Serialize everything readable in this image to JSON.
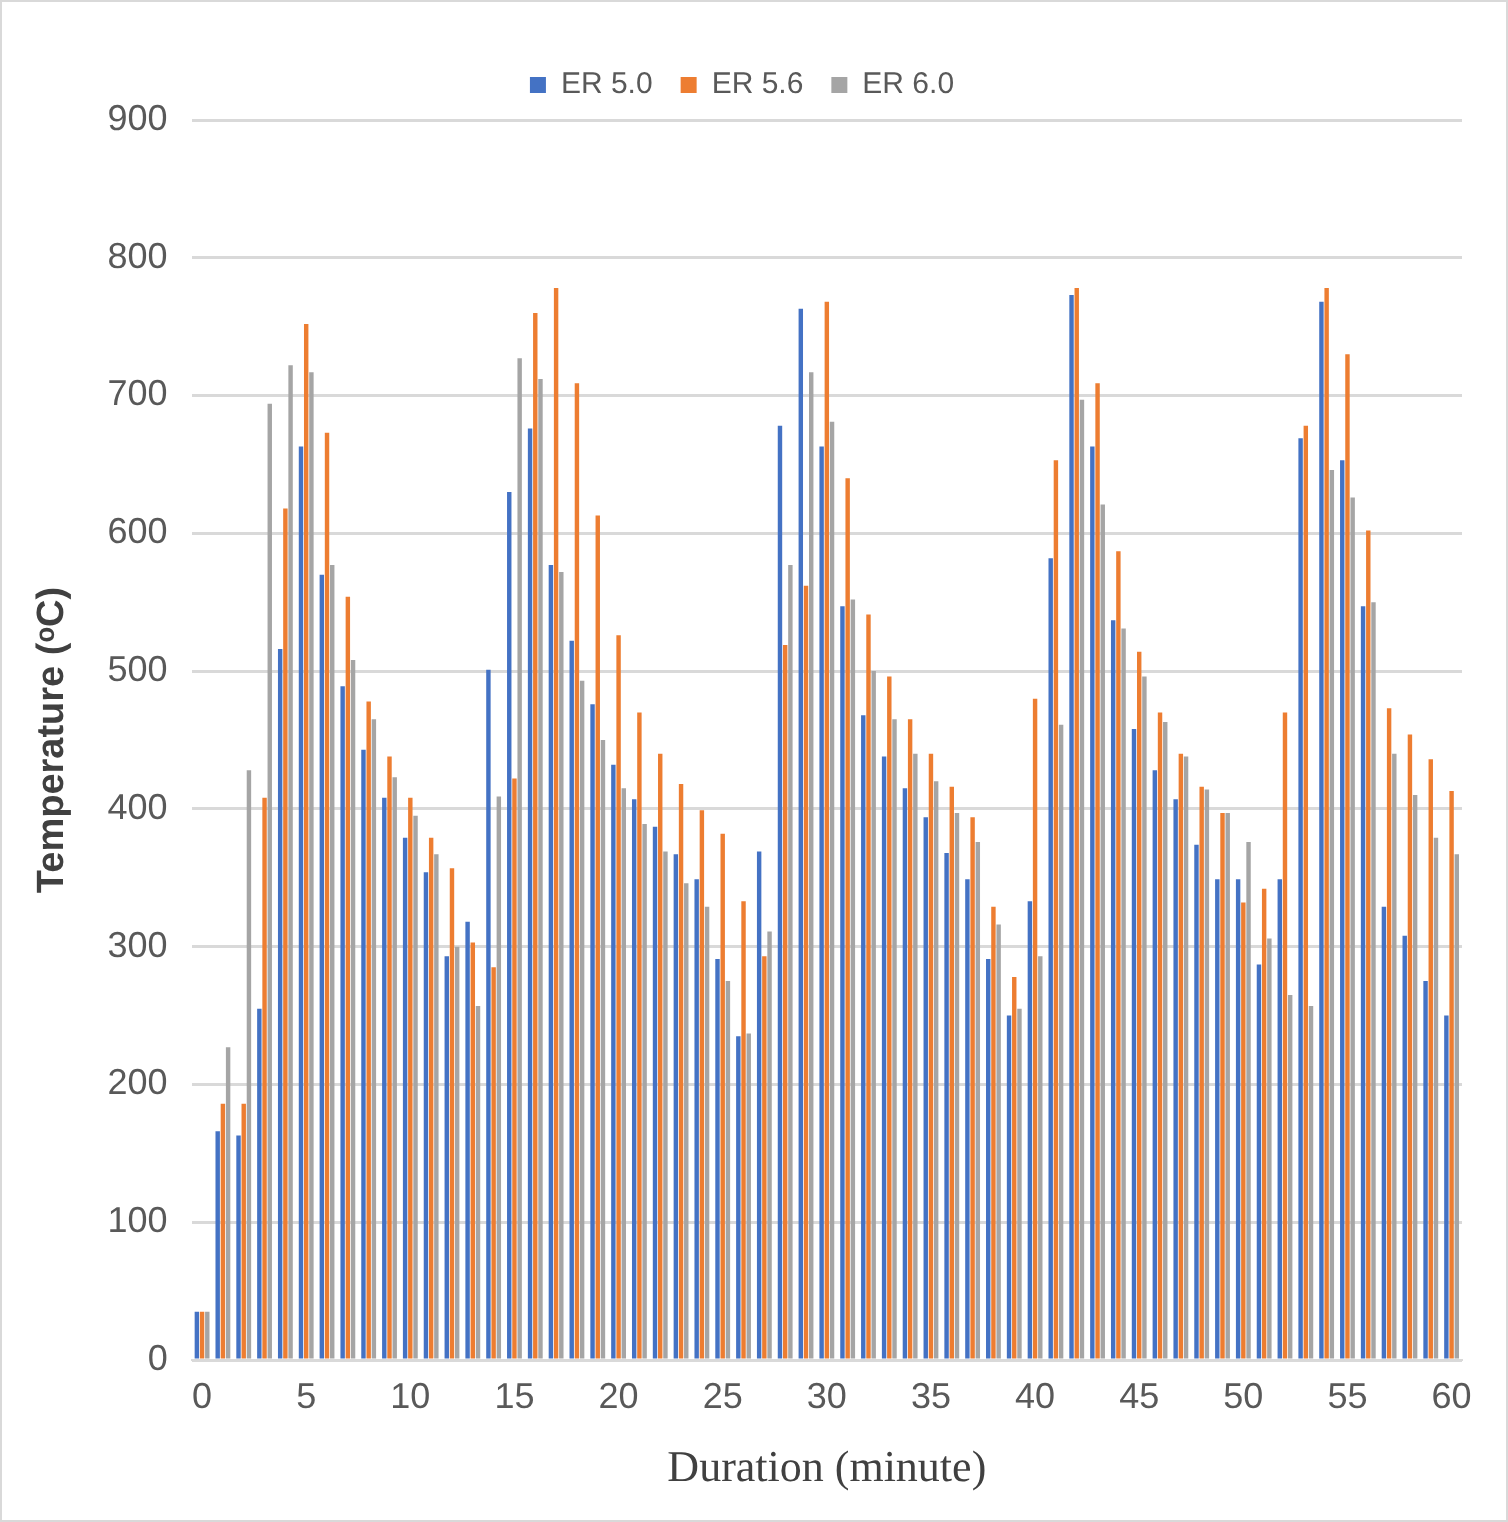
{
  "chart_data": {
    "type": "bar",
    "xlabel": "Duration (minute)",
    "ylabel": "Temperature (ᵒC)",
    "categories": [
      "0",
      null,
      null,
      null,
      null,
      "5",
      null,
      null,
      null,
      null,
      "10",
      null,
      null,
      null,
      null,
      "15",
      null,
      null,
      null,
      null,
      "20",
      null,
      null,
      null,
      null,
      "25",
      null,
      null,
      null,
      null,
      "30",
      null,
      null,
      null,
      null,
      "35",
      null,
      null,
      null,
      null,
      "40",
      null,
      null,
      null,
      null,
      "45",
      null,
      null,
      null,
      null,
      "50",
      null,
      null,
      null,
      null,
      "55",
      null,
      null,
      null,
      null,
      "60"
    ],
    "ylim": [
      0,
      900
    ],
    "yticks": [
      0,
      100,
      200,
      300,
      400,
      500,
      600,
      700,
      800,
      900
    ],
    "grid": "y",
    "legend": "top",
    "series": [
      {
        "name": "ER 5.0",
        "color": "#4472c4",
        "values": [
          35,
          166,
          163,
          255,
          516,
          663,
          570,
          489,
          443,
          408,
          379,
          354,
          293,
          318,
          501,
          630,
          676,
          577,
          522,
          476,
          432,
          407,
          387,
          367,
          349,
          291,
          235,
          369,
          678,
          763,
          663,
          547,
          468,
          438,
          415,
          394,
          368,
          349,
          291,
          250,
          333,
          582,
          773,
          663,
          537,
          458,
          428,
          407,
          374,
          349,
          349,
          287,
          349,
          669,
          768,
          653,
          547,
          329,
          308,
          275,
          250
        ]
      },
      {
        "name": "ER 5.6",
        "color": "#ed7d31",
        "values": [
          35,
          186,
          186,
          408,
          618,
          752,
          673,
          554,
          478,
          438,
          408,
          379,
          357,
          303,
          285,
          422,
          760,
          778,
          709,
          613,
          526,
          470,
          440,
          418,
          399,
          382,
          333,
          293,
          519,
          562,
          768,
          640,
          541,
          496,
          465,
          440,
          416,
          394,
          329,
          278,
          480,
          653,
          778,
          709,
          587,
          514,
          470,
          440,
          416,
          397,
          332,
          342,
          470,
          678,
          778,
          730,
          602,
          473,
          454,
          436,
          413
        ]
      },
      {
        "name": "ER 6.0",
        "color": "#a5a5a5",
        "values": [
          35,
          227,
          428,
          694,
          722,
          717,
          577,
          508,
          465,
          423,
          395,
          367,
          300,
          257,
          409,
          727,
          712,
          572,
          493,
          450,
          415,
          389,
          369,
          346,
          329,
          275,
          237,
          311,
          577,
          717,
          681,
          552,
          500,
          465,
          440,
          420,
          397,
          376,
          316,
          255,
          293,
          461,
          697,
          621,
          531,
          496,
          463,
          438,
          414,
          397,
          376,
          306,
          265,
          257,
          646,
          626,
          550,
          440,
          410,
          379,
          367
        ]
      }
    ]
  }
}
